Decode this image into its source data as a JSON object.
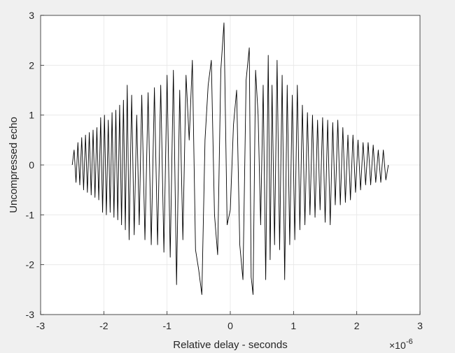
{
  "chart_data": {
    "type": "line",
    "title": "",
    "xlabel": "Relative delay - seconds",
    "ylabel": "Uncompressed echo",
    "x_exponent_label": "×10",
    "x_exponent_power": "-6",
    "xlim": [
      -3,
      3
    ],
    "ylim": [
      -3,
      3
    ],
    "x_ticks": [
      -3,
      -2,
      -1,
      0,
      1,
      2,
      3
    ],
    "y_ticks": [
      -3,
      -2,
      -1,
      0,
      1,
      2,
      3
    ],
    "x_tick_labels": [
      "-3",
      "-2",
      "-1",
      "0",
      "1",
      "2",
      "3"
    ],
    "y_tick_labels": [
      "-3",
      "-2",
      "-1",
      "0",
      "1",
      "2",
      "3"
    ],
    "grid": true,
    "legend": "none",
    "line_color": "#000000",
    "axes_background": "#ffffff",
    "figure_background": "#f0f0f0",
    "grid_color": "#e6e6e6",
    "series": [
      {
        "x_range": [
          -2.5,
          2.5
        ],
        "points": [
          [
            -2.5,
            0
          ],
          [
            -2.47,
            0.3
          ],
          [
            -2.44,
            -0.35
          ],
          [
            -2.41,
            0.45
          ],
          [
            -2.38,
            -0.4
          ],
          [
            -2.35,
            0.55
          ],
          [
            -2.32,
            -0.5
          ],
          [
            -2.29,
            0.6
          ],
          [
            -2.26,
            -0.55
          ],
          [
            -2.23,
            0.65
          ],
          [
            -2.2,
            -0.6
          ],
          [
            -2.17,
            0.7
          ],
          [
            -2.14,
            -0.65
          ],
          [
            -2.11,
            0.75
          ],
          [
            -2.08,
            -0.7
          ],
          [
            -2.05,
            0.95
          ],
          [
            -2.02,
            -0.95
          ],
          [
            -1.99,
            1.0
          ],
          [
            -1.96,
            -1.0
          ],
          [
            -1.93,
            0.9
          ],
          [
            -1.9,
            -0.95
          ],
          [
            -1.87,
            1.05
          ],
          [
            -1.84,
            -1.05
          ],
          [
            -1.81,
            1.1
          ],
          [
            -1.78,
            -1.1
          ],
          [
            -1.75,
            1.2
          ],
          [
            -1.72,
            -1.2
          ],
          [
            -1.69,
            1.3
          ],
          [
            -1.66,
            -1.3
          ],
          [
            -1.63,
            1.6
          ],
          [
            -1.6,
            -1.5
          ],
          [
            -1.56,
            1.4
          ],
          [
            -1.52,
            -1.4
          ],
          [
            -1.48,
            1.0
          ],
          [
            -1.44,
            -1.2
          ],
          [
            -1.4,
            1.4
          ],
          [
            -1.35,
            -1.5
          ],
          [
            -1.3,
            1.45
          ],
          [
            -1.25,
            -1.6
          ],
          [
            -1.2,
            1.55
          ],
          [
            -1.15,
            -1.6
          ],
          [
            -1.1,
            1.6
          ],
          [
            -1.05,
            -1.75
          ],
          [
            -1.0,
            1.8
          ],
          [
            -0.95,
            -1.85
          ],
          [
            -0.9,
            1.9
          ],
          [
            -0.85,
            -2.4
          ],
          [
            -0.8,
            1.5
          ],
          [
            -0.75,
            -1.5
          ],
          [
            -0.7,
            1.8
          ],
          [
            -0.65,
            0.5
          ],
          [
            -0.6,
            2.1
          ],
          [
            -0.55,
            -1.7
          ],
          [
            -0.5,
            -2.1
          ],
          [
            -0.45,
            -2.6
          ],
          [
            -0.4,
            0.5
          ],
          [
            -0.35,
            1.6
          ],
          [
            -0.3,
            2.1
          ],
          [
            -0.25,
            -1.0
          ],
          [
            -0.2,
            -1.8
          ],
          [
            -0.15,
            1.9
          ],
          [
            -0.1,
            2.85
          ],
          [
            -0.05,
            -1.2
          ],
          [
            0.0,
            -0.9
          ],
          [
            0.05,
            0.8
          ],
          [
            0.1,
            1.5
          ],
          [
            0.15,
            -1.6
          ],
          [
            0.2,
            -2.3
          ],
          [
            0.25,
            1.7
          ],
          [
            0.3,
            2.35
          ],
          [
            0.33,
            -2.25
          ],
          [
            0.36,
            -2.6
          ],
          [
            0.4,
            1.9
          ],
          [
            0.44,
            1.0
          ],
          [
            0.48,
            -1.2
          ],
          [
            0.52,
            1.6
          ],
          [
            0.56,
            -2.3
          ],
          [
            0.6,
            2.2
          ],
          [
            0.63,
            -1.9
          ],
          [
            0.66,
            1.6
          ],
          [
            0.7,
            -1.6
          ],
          [
            0.74,
            2.1
          ],
          [
            0.78,
            -1.7
          ],
          [
            0.82,
            1.8
          ],
          [
            0.86,
            -2.3
          ],
          [
            0.9,
            1.6
          ],
          [
            0.94,
            -1.6
          ],
          [
            0.98,
            1.4
          ],
          [
            1.02,
            -1.5
          ],
          [
            1.06,
            1.6
          ],
          [
            1.1,
            -1.3
          ],
          [
            1.14,
            1.2
          ],
          [
            1.18,
            -1.2
          ],
          [
            1.22,
            1.05
          ],
          [
            1.26,
            -1.0
          ],
          [
            1.3,
            1.0
          ],
          [
            1.34,
            -1.05
          ],
          [
            1.38,
            0.9
          ],
          [
            1.42,
            -0.9
          ],
          [
            1.46,
            0.95
          ],
          [
            1.5,
            -1.15
          ],
          [
            1.54,
            0.9
          ],
          [
            1.58,
            -1.2
          ],
          [
            1.62,
            0.85
          ],
          [
            1.66,
            -0.8
          ],
          [
            1.7,
            0.9
          ],
          [
            1.74,
            -0.8
          ],
          [
            1.78,
            0.75
          ],
          [
            1.82,
            -0.75
          ],
          [
            1.86,
            0.6
          ],
          [
            1.9,
            -0.7
          ],
          [
            1.94,
            0.6
          ],
          [
            1.98,
            -0.55
          ],
          [
            2.02,
            0.5
          ],
          [
            2.06,
            -0.5
          ],
          [
            2.1,
            0.45
          ],
          [
            2.14,
            -0.4
          ],
          [
            2.18,
            0.45
          ],
          [
            2.22,
            -0.4
          ],
          [
            2.26,
            0.4
          ],
          [
            2.3,
            -0.35
          ],
          [
            2.34,
            0.3
          ],
          [
            2.38,
            -0.35
          ],
          [
            2.42,
            0.3
          ],
          [
            2.46,
            -0.3
          ],
          [
            2.5,
            0
          ]
        ]
      }
    ]
  }
}
